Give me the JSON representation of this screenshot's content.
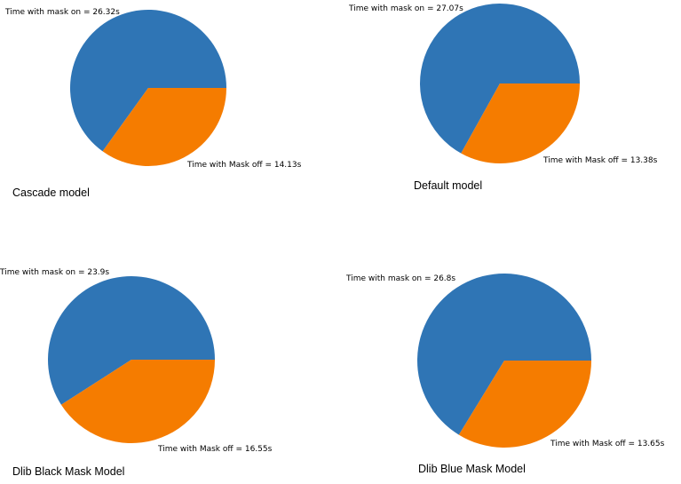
{
  "chart_data": [
    {
      "type": "pie",
      "title": "Cascade model",
      "categories": [
        "Time with mask on = 26.32s",
        "Time with Mask off = 14.13s"
      ],
      "values": [
        26.32,
        14.13
      ],
      "colors": [
        "#2f75b5",
        "#f57c00"
      ]
    },
    {
      "type": "pie",
      "title": "Default model",
      "categories": [
        "Time with mask on = 27.07s",
        "Time with Mask off = 13.38s"
      ],
      "values": [
        27.07,
        13.38
      ],
      "colors": [
        "#2f75b5",
        "#f57c00"
      ]
    },
    {
      "type": "pie",
      "title": "Dlib Black Mask Model",
      "categories": [
        "Time with mask on = 23.9s",
        "Time with Mask off = 16.55s"
      ],
      "values": [
        23.9,
        16.55
      ],
      "colors": [
        "#2f75b5",
        "#f57c00"
      ]
    },
    {
      "type": "pie",
      "title": "Dlib Blue Mask Model",
      "categories": [
        "Time with mask on = 26.8s",
        "Time with Mask off = 13.65s"
      ],
      "values": [
        26.8,
        13.65
      ],
      "colors": [
        "#2f75b5",
        "#f57c00"
      ]
    }
  ]
}
